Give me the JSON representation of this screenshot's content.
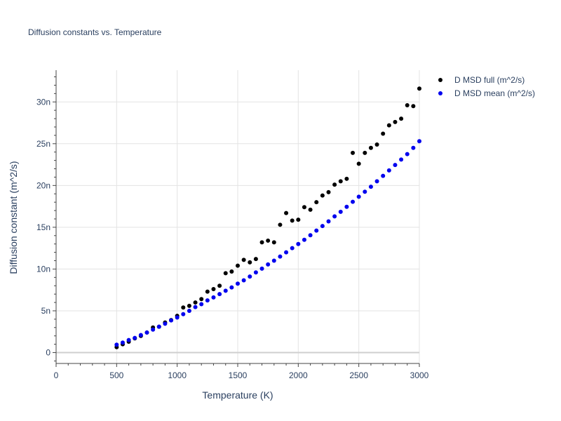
{
  "chart_data": {
    "type": "scatter",
    "title": "Diffusion constants vs. Temperature",
    "xlabel": "Temperature (K)",
    "ylabel": "Diffusion constant (m^2/s)",
    "xlim": [
      0,
      3000
    ],
    "ylim": [
      -1.3,
      33.8
    ],
    "x_ticks": [
      0,
      500,
      1000,
      1500,
      2000,
      2500,
      3000
    ],
    "x_tick_labels": [
      "0",
      "500",
      "1000",
      "1500",
      "2000",
      "2500",
      "3000"
    ],
    "y_ticks": [
      0,
      5,
      10,
      15,
      20,
      25,
      30
    ],
    "y_tick_labels": [
      "0",
      "5n",
      "10n",
      "15n",
      "20n",
      "25n",
      "30n"
    ],
    "y_unit_note": "values in units of 1e-9 m^2/s (n)",
    "grid": true,
    "legend_position": "top-right",
    "colors": {
      "full": "#000000",
      "mean": "#0000ee",
      "grid": "#e3e3e3",
      "text": "#2a3f5f"
    },
    "series": [
      {
        "name": "D MSD full (m^2/s)",
        "color": "#000000",
        "x": [
          500,
          550,
          600,
          650,
          700,
          750,
          800,
          850,
          900,
          950,
          1000,
          1050,
          1100,
          1150,
          1200,
          1250,
          1300,
          1350,
          1400,
          1450,
          1500,
          1550,
          1600,
          1650,
          1700,
          1750,
          1800,
          1850,
          1900,
          1950,
          2000,
          2050,
          2100,
          2150,
          2200,
          2250,
          2300,
          2350,
          2400,
          2450,
          2500,
          2550,
          2600,
          2650,
          2700,
          2750,
          2800,
          2850,
          2900,
          2950,
          3000
        ],
        "y": [
          0.65,
          1.0,
          1.3,
          1.7,
          2.0,
          2.4,
          3.0,
          3.1,
          3.6,
          3.9,
          4.4,
          5.4,
          5.6,
          6.0,
          6.4,
          7.3,
          7.6,
          8.0,
          9.5,
          9.7,
          10.4,
          11.1,
          10.8,
          11.2,
          13.2,
          13.4,
          13.2,
          15.3,
          16.7,
          15.8,
          15.9,
          17.4,
          17.1,
          18.0,
          18.8,
          19.2,
          20.1,
          20.5,
          20.8,
          23.9,
          22.6,
          23.9,
          24.5,
          24.9,
          26.2,
          27.2,
          27.6,
          28.0,
          29.6,
          29.5,
          31.6
        ]
      },
      {
        "name": "D MSD mean (m^2/s)",
        "color": "#0000ee",
        "x": [
          500,
          550,
          600,
          650,
          700,
          750,
          800,
          850,
          900,
          950,
          1000,
          1050,
          1100,
          1150,
          1200,
          1250,
          1300,
          1350,
          1400,
          1450,
          1500,
          1550,
          1600,
          1650,
          1700,
          1750,
          1800,
          1850,
          1900,
          1950,
          2000,
          2050,
          2100,
          2150,
          2200,
          2250,
          2300,
          2350,
          2400,
          2450,
          2500,
          2550,
          2600,
          2650,
          2700,
          2750,
          2800,
          2850,
          2900,
          2950,
          3000
        ],
        "y": [
          0.95,
          1.2,
          1.5,
          1.75,
          2.1,
          2.4,
          2.75,
          3.1,
          3.45,
          3.85,
          4.2,
          4.6,
          5.0,
          5.45,
          5.8,
          6.25,
          6.6,
          7.0,
          7.4,
          7.8,
          8.25,
          8.65,
          9.1,
          9.6,
          10.05,
          10.55,
          11.0,
          11.5,
          12.0,
          12.5,
          13.0,
          13.5,
          14.05,
          14.6,
          15.15,
          15.7,
          16.3,
          16.85,
          17.45,
          18.05,
          18.65,
          19.25,
          19.85,
          20.5,
          21.15,
          21.8,
          22.45,
          23.1,
          23.75,
          24.5,
          25.3
        ]
      }
    ]
  }
}
